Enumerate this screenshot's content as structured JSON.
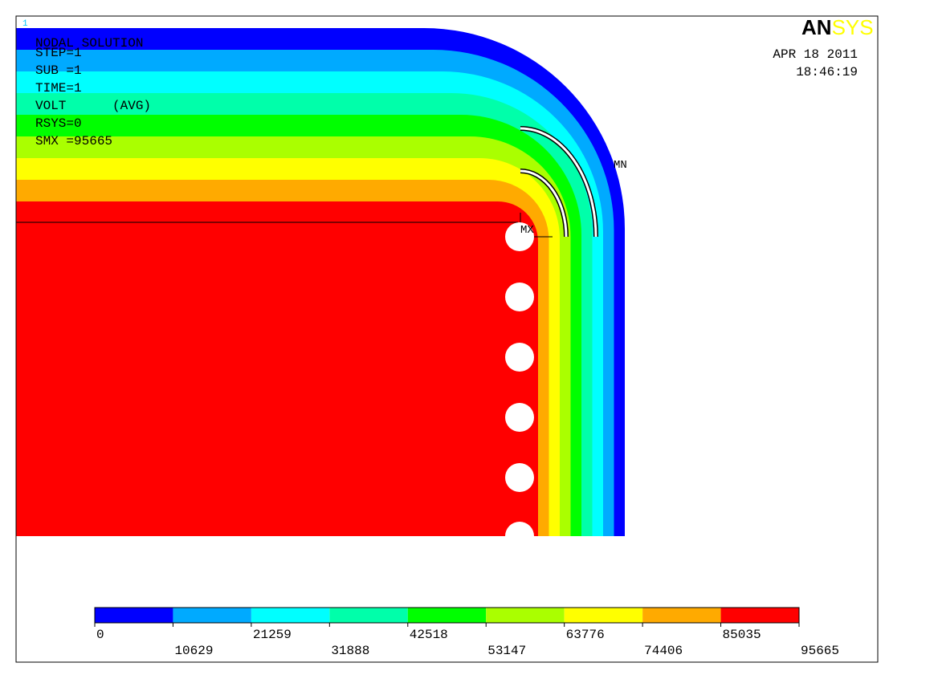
{
  "window_number": "1",
  "logo": {
    "an": "AN",
    "sys": "SYS"
  },
  "info": [
    "NODAL SOLUTION",
    "STEP=1",
    "SUB =1",
    "TIME=1",
    "VOLT      (AVG)",
    "RSYS=0",
    "SMX =95665"
  ],
  "date": "APR 18 2011",
  "time": "18:46:19",
  "markers": {
    "mn": "MN",
    "mx": "MX"
  },
  "legend": {
    "levels": [
      0,
      10629,
      21259,
      31888,
      42518,
      53147,
      63776,
      74406,
      85035,
      95665
    ],
    "colors": [
      "#0000ff",
      "#00aaff",
      "#00ffff",
      "#00ffaa",
      "#00ff00",
      "#aaff00",
      "#ffff00",
      "#ffaa00",
      "#ff0000"
    ]
  }
}
